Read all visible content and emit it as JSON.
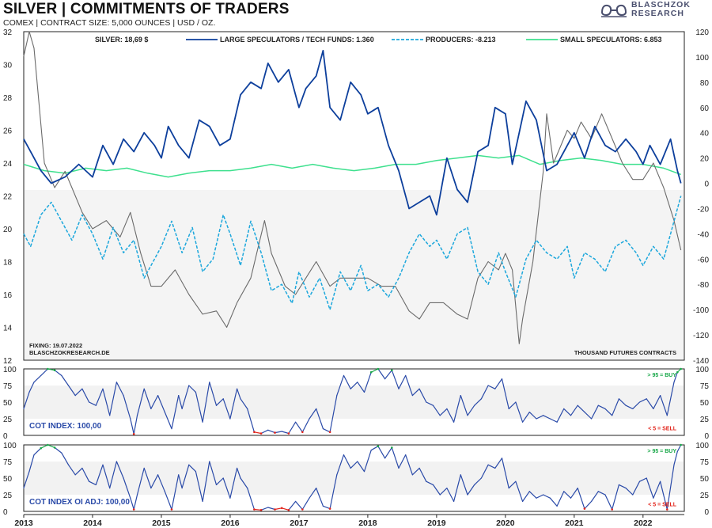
{
  "header": {
    "title": "SILVER | COMMITMENTS OF TRADERS",
    "subtitle": "COMEX | CONTRACT SIZE: 5,000 OUNCES | USD / OZ.",
    "logo_line1": "BLASCHZOK",
    "logo_line2": "RESEARCH"
  },
  "colors": {
    "silver": "#6b6b6b",
    "large_specs": "#0d3f9c",
    "producers": "#1ca7dc",
    "small_specs": "#3ee08e",
    "index": "#2a4aa8",
    "buy": "#1aa84a",
    "sell": "#e2231a"
  },
  "chart_data": [
    {
      "type": "line",
      "title": "SILVER | COMMITMENTS OF TRADERS",
      "x_range": [
        2013.0,
        2022.6
      ],
      "x_ticks": [
        "2013",
        "2014",
        "2015",
        "2016",
        "2017",
        "2018",
        "2019",
        "2020",
        "2021",
        "2022"
      ],
      "left_axis": {
        "label": "USD / OZ.",
        "range": [
          12,
          32
        ],
        "ticks": [
          "32",
          "30",
          "28",
          "26",
          "24",
          "22",
          "20",
          "18",
          "16",
          "14",
          "12"
        ]
      },
      "right_axis": {
        "label": "THOUSAND FUTURES CONTRACTS",
        "range": [
          -140,
          120
        ],
        "ticks": [
          "120",
          "100",
          "80",
          "60",
          "40",
          "20",
          "0",
          "-20",
          "-40",
          "-60",
          "-80",
          "-100",
          "-120",
          "-140"
        ]
      },
      "legend": [
        {
          "label": "SILVER: 18,69 $",
          "style": "solid-gray"
        },
        {
          "label": "LARGE SPECULATORS / TECH FUNDS: 1.360",
          "style": "solid-navy"
        },
        {
          "label": "PRODUCERS: -8.213",
          "style": "dashed-cyan"
        },
        {
          "label": "SMALL SPECULATORS: 6.853",
          "style": "solid-green"
        }
      ],
      "annotation_left_1": "FIXING: 19.07.2022",
      "annotation_left_2": "BLASCHZOKRESEARCH.DE",
      "annotation_right": "THOUSAND FUTURES CONTRACTS",
      "series": [
        {
          "name": "Silver",
          "axis": "left",
          "x": [
            2013.0,
            2013.08,
            2013.15,
            2013.3,
            2013.45,
            2013.6,
            2013.7,
            2013.85,
            2014.0,
            2014.2,
            2014.4,
            2014.55,
            2014.7,
            2014.85,
            2015.0,
            2015.2,
            2015.4,
            2015.6,
            2015.8,
            2015.95,
            2016.1,
            2016.3,
            2016.5,
            2016.6,
            2016.8,
            2016.95,
            2017.1,
            2017.25,
            2017.45,
            2017.6,
            2017.8,
            2018.0,
            2018.2,
            2018.4,
            2018.6,
            2018.75,
            2018.9,
            2019.1,
            2019.3,
            2019.45,
            2019.6,
            2019.75,
            2019.9,
            2020.0,
            2020.1,
            2020.2,
            2020.25,
            2020.4,
            2020.55,
            2020.6,
            2020.7,
            2020.9,
            2021.0,
            2021.1,
            2021.25,
            2021.4,
            2021.55,
            2021.7,
            2021.85,
            2022.0,
            2022.15,
            2022.3,
            2022.45,
            2022.55
          ],
          "values": [
            30.5,
            32.0,
            31.0,
            24.0,
            22.5,
            23.5,
            22.5,
            21.0,
            20.0,
            20.5,
            19.5,
            21.0,
            18.5,
            16.5,
            16.5,
            17.5,
            16.0,
            14.8,
            15.0,
            14.0,
            15.5,
            17.0,
            20.5,
            18.5,
            16.5,
            16.0,
            17.0,
            18.0,
            16.5,
            17.0,
            17.0,
            17.0,
            16.5,
            16.5,
            15.0,
            14.5,
            15.5,
            15.5,
            14.8,
            14.5,
            17.0,
            18.0,
            17.5,
            18.5,
            17.5,
            13.0,
            14.5,
            18.0,
            23.5,
            27.0,
            24.0,
            26.0,
            25.5,
            26.5,
            25.5,
            27.0,
            25.5,
            24.0,
            23.0,
            23.0,
            24.0,
            22.5,
            20.5,
            18.7
          ]
        },
        {
          "name": "Large Speculators / Tech Funds",
          "axis": "right",
          "x": [
            2013.0,
            2013.1,
            2013.25,
            2013.4,
            2013.6,
            2013.8,
            2014.0,
            2014.15,
            2014.3,
            2014.45,
            2014.6,
            2014.75,
            2014.9,
            2015.0,
            2015.1,
            2015.25,
            2015.4,
            2015.55,
            2015.7,
            2015.85,
            2016.0,
            2016.15,
            2016.3,
            2016.45,
            2016.55,
            2016.7,
            2016.85,
            2017.0,
            2017.1,
            2017.25,
            2017.35,
            2017.45,
            2017.6,
            2017.75,
            2017.9,
            2018.0,
            2018.15,
            2018.3,
            2018.45,
            2018.6,
            2018.75,
            2018.9,
            2019.0,
            2019.15,
            2019.3,
            2019.45,
            2019.6,
            2019.75,
            2019.85,
            2020.0,
            2020.1,
            2020.2,
            2020.3,
            2020.45,
            2020.6,
            2020.75,
            2020.9,
            2021.0,
            2021.15,
            2021.3,
            2021.45,
            2021.6,
            2021.75,
            2021.9,
            2022.0,
            2022.1,
            2022.25,
            2022.4,
            2022.5,
            2022.55
          ],
          "values": [
            35,
            25,
            10,
            0,
            5,
            15,
            5,
            30,
            15,
            35,
            25,
            40,
            30,
            20,
            45,
            30,
            20,
            50,
            45,
            30,
            35,
            70,
            80,
            75,
            95,
            80,
            90,
            60,
            75,
            85,
            105,
            60,
            50,
            80,
            70,
            55,
            60,
            30,
            10,
            -20,
            -15,
            -10,
            -25,
            20,
            -5,
            -15,
            25,
            30,
            60,
            55,
            15,
            40,
            65,
            50,
            10,
            15,
            30,
            40,
            20,
            45,
            30,
            25,
            35,
            25,
            15,
            30,
            15,
            35,
            10,
            0
          ]
        },
        {
          "name": "Producers",
          "axis": "right",
          "style": "dashed",
          "x": [
            2013.0,
            2013.1,
            2013.25,
            2013.4,
            2013.55,
            2013.7,
            2013.85,
            2014.0,
            2014.15,
            2014.3,
            2014.45,
            2014.6,
            2014.75,
            2014.9,
            2015.0,
            2015.15,
            2015.3,
            2015.45,
            2015.6,
            2015.75,
            2015.9,
            2016.0,
            2016.15,
            2016.3,
            2016.45,
            2016.6,
            2016.75,
            2016.9,
            2017.0,
            2017.15,
            2017.3,
            2017.45,
            2017.6,
            2017.75,
            2017.9,
            2018.0,
            2018.15,
            2018.3,
            2018.45,
            2018.6,
            2018.75,
            2018.9,
            2019.0,
            2019.15,
            2019.3,
            2019.45,
            2019.6,
            2019.75,
            2019.9,
            2020.0,
            2020.15,
            2020.3,
            2020.45,
            2020.6,
            2020.75,
            2020.9,
            2021.0,
            2021.15,
            2021.3,
            2021.45,
            2021.6,
            2021.75,
            2021.9,
            2022.0,
            2022.15,
            2022.3,
            2022.45,
            2022.55
          ],
          "values": [
            -40,
            -50,
            -25,
            -15,
            -30,
            -45,
            -25,
            -40,
            -60,
            -35,
            -55,
            -45,
            -75,
            -60,
            -50,
            -30,
            -55,
            -35,
            -70,
            -60,
            -25,
            -40,
            -65,
            -30,
            -55,
            -85,
            -80,
            -95,
            -70,
            -90,
            -75,
            -100,
            -70,
            -85,
            -65,
            -85,
            -80,
            -90,
            -75,
            -55,
            -40,
            -50,
            -45,
            -60,
            -40,
            -35,
            -70,
            -80,
            -55,
            -70,
            -90,
            -60,
            -45,
            -55,
            -60,
            -50,
            -75,
            -55,
            -60,
            -70,
            -50,
            -45,
            -55,
            -65,
            -50,
            -60,
            -30,
            -10
          ]
        },
        {
          "name": "Small Speculators",
          "axis": "right",
          "x": [
            2013.0,
            2013.3,
            2013.6,
            2013.9,
            2014.2,
            2014.5,
            2014.8,
            2015.1,
            2015.4,
            2015.7,
            2016.0,
            2016.3,
            2016.6,
            2016.9,
            2017.2,
            2017.5,
            2017.8,
            2018.1,
            2018.4,
            2018.7,
            2019.0,
            2019.3,
            2019.6,
            2019.9,
            2020.2,
            2020.5,
            2020.8,
            2021.1,
            2021.4,
            2021.7,
            2022.0,
            2022.3,
            2022.55
          ],
          "values": [
            15,
            10,
            8,
            12,
            10,
            12,
            8,
            5,
            8,
            10,
            10,
            12,
            15,
            12,
            15,
            12,
            10,
            12,
            15,
            15,
            18,
            20,
            22,
            20,
            22,
            15,
            18,
            20,
            18,
            15,
            15,
            12,
            7
          ]
        }
      ]
    },
    {
      "type": "line",
      "title": "COT INDEX: 100,00",
      "y_range": [
        0,
        100
      ],
      "y_ticks": [
        "100",
        "75",
        "50",
        "25",
        "0"
      ],
      "buy_label": "> 95 = BUY",
      "sell_label": "< 5 = SELL",
      "x": [
        2013.0,
        2013.08,
        2013.15,
        2013.25,
        2013.35,
        2013.45,
        2013.55,
        2013.65,
        2013.75,
        2013.85,
        2013.95,
        2014.05,
        2014.15,
        2014.25,
        2014.35,
        2014.45,
        2014.55,
        2014.6,
        2014.65,
        2014.75,
        2014.85,
        2014.95,
        2015.05,
        2015.15,
        2015.25,
        2015.3,
        2015.4,
        2015.5,
        2015.6,
        2015.7,
        2015.8,
        2015.9,
        2016.0,
        2016.1,
        2016.15,
        2016.25,
        2016.35,
        2016.45,
        2016.55,
        2016.65,
        2016.75,
        2016.85,
        2016.95,
        2017.05,
        2017.15,
        2017.25,
        2017.35,
        2017.45,
        2017.55,
        2017.65,
        2017.75,
        2017.85,
        2017.95,
        2018.05,
        2018.15,
        2018.25,
        2018.35,
        2018.45,
        2018.55,
        2018.65,
        2018.75,
        2018.85,
        2018.95,
        2019.05,
        2019.15,
        2019.25,
        2019.35,
        2019.45,
        2019.55,
        2019.65,
        2019.75,
        2019.85,
        2019.95,
        2020.05,
        2020.15,
        2020.25,
        2020.35,
        2020.45,
        2020.55,
        2020.65,
        2020.75,
        2020.85,
        2020.95,
        2021.05,
        2021.15,
        2021.25,
        2021.35,
        2021.45,
        2021.55,
        2021.65,
        2021.75,
        2021.85,
        2021.95,
        2022.05,
        2022.15,
        2022.25,
        2022.35,
        2022.45,
        2022.5,
        2022.55
      ],
      "values": [
        40,
        65,
        80,
        90,
        100,
        98,
        90,
        75,
        60,
        70,
        50,
        45,
        70,
        30,
        80,
        60,
        25,
        2,
        30,
        70,
        40,
        60,
        35,
        10,
        60,
        40,
        75,
        65,
        20,
        80,
        45,
        55,
        25,
        70,
        55,
        40,
        5,
        3,
        8,
        4,
        6,
        3,
        20,
        5,
        25,
        40,
        10,
        5,
        60,
        90,
        70,
        80,
        65,
        95,
        100,
        85,
        98,
        70,
        90,
        60,
        70,
        50,
        45,
        30,
        40,
        20,
        60,
        30,
        45,
        55,
        75,
        70,
        85,
        40,
        50,
        20,
        35,
        25,
        30,
        25,
        20,
        40,
        30,
        45,
        35,
        25,
        45,
        40,
        30,
        55,
        45,
        40,
        50,
        55,
        40,
        60,
        30,
        80,
        95,
        100
      ]
    },
    {
      "type": "line",
      "title": "COT INDEX OI ADJ: 100,00",
      "y_range": [
        0,
        100
      ],
      "y_ticks": [
        "100",
        "75",
        "50",
        "25",
        "0"
      ],
      "buy_label": "> 95 = BUY",
      "sell_label": "< 5 = SELL",
      "x": [
        2013.0,
        2013.08,
        2013.15,
        2013.25,
        2013.35,
        2013.45,
        2013.55,
        2013.65,
        2013.75,
        2013.85,
        2013.95,
        2014.05,
        2014.15,
        2014.25,
        2014.35,
        2014.45,
        2014.55,
        2014.6,
        2014.65,
        2014.75,
        2014.85,
        2014.95,
        2015.05,
        2015.15,
        2015.25,
        2015.3,
        2015.4,
        2015.5,
        2015.6,
        2015.7,
        2015.8,
        2015.9,
        2016.0,
        2016.1,
        2016.15,
        2016.25,
        2016.35,
        2016.45,
        2016.55,
        2016.65,
        2016.75,
        2016.85,
        2016.95,
        2017.05,
        2017.15,
        2017.25,
        2017.35,
        2017.45,
        2017.55,
        2017.65,
        2017.75,
        2017.85,
        2017.95,
        2018.05,
        2018.15,
        2018.25,
        2018.35,
        2018.45,
        2018.55,
        2018.65,
        2018.75,
        2018.85,
        2018.95,
        2019.05,
        2019.15,
        2019.25,
        2019.35,
        2019.45,
        2019.55,
        2019.65,
        2019.75,
        2019.85,
        2019.95,
        2020.05,
        2020.15,
        2020.25,
        2020.35,
        2020.45,
        2020.55,
        2020.65,
        2020.75,
        2020.85,
        2020.95,
        2021.05,
        2021.15,
        2021.25,
        2021.35,
        2021.45,
        2021.55,
        2021.65,
        2021.75,
        2021.85,
        2021.95,
        2022.05,
        2022.15,
        2022.25,
        2022.35,
        2022.45,
        2022.5,
        2022.55
      ],
      "values": [
        35,
        60,
        85,
        95,
        100,
        96,
        88,
        70,
        55,
        65,
        45,
        40,
        70,
        35,
        75,
        50,
        20,
        3,
        25,
        65,
        35,
        55,
        30,
        3,
        55,
        35,
        70,
        60,
        15,
        75,
        40,
        50,
        20,
        65,
        50,
        35,
        3,
        2,
        6,
        3,
        5,
        2,
        15,
        3,
        20,
        35,
        8,
        4,
        55,
        85,
        65,
        75,
        60,
        92,
        98,
        80,
        96,
        65,
        85,
        55,
        65,
        45,
        40,
        25,
        35,
        15,
        55,
        25,
        40,
        50,
        70,
        65,
        80,
        35,
        45,
        15,
        30,
        20,
        25,
        20,
        8,
        30,
        20,
        35,
        4,
        15,
        30,
        25,
        3,
        40,
        35,
        25,
        45,
        50,
        20,
        45,
        3,
        70,
        90,
        100
      ]
    }
  ]
}
